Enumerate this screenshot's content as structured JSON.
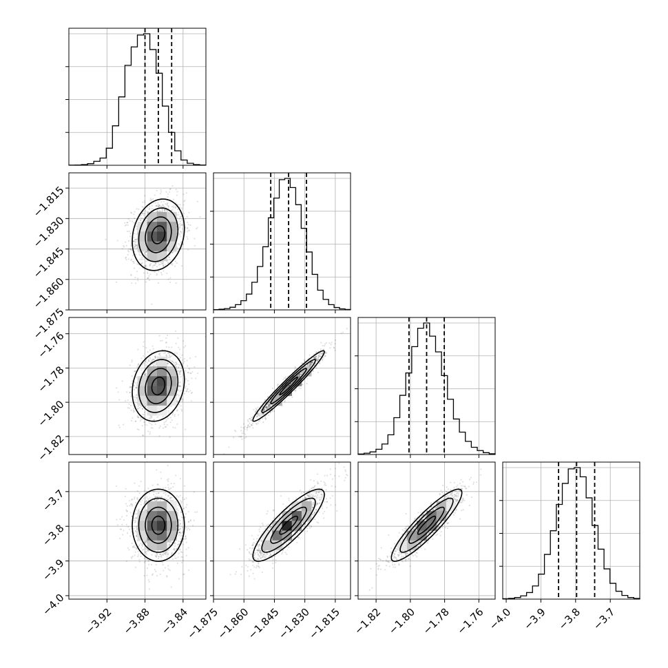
{
  "chart_data": {
    "type": "corner",
    "parameters": [
      {
        "key": "p0",
        "range": [
          -3.96,
          -3.816
        ],
        "center": -3.866,
        "sigma": 0.0137,
        "quantiles": [
          -3.88,
          -3.866,
          -3.852
        ],
        "ticks": [
          -3.92,
          -3.88,
          -3.84
        ],
        "tick_labels": [
          "−3.92",
          "−3.88",
          "−3.84"
        ],
        "hist": [
          1,
          2,
          5,
          12,
          30,
          55,
          130,
          300,
          520,
          760,
          900,
          990,
          1000,
          880,
          700,
          450,
          250,
          110,
          40,
          15,
          5,
          2
        ]
      },
      {
        "key": "p1",
        "range": [
          -1.875,
          -1.8075
        ],
        "center": -1.838,
        "sigma": 0.0088,
        "quantiles": [
          -1.8468,
          -1.838,
          -1.8292
        ],
        "ticks": [
          -1.875,
          -1.86,
          -1.845,
          -1.83,
          -1.815
        ],
        "tick_labels": [
          "−1.875",
          "−1.860",
          "−1.845",
          "−1.830",
          "−1.815"
        ],
        "y_tick_labels": [
          "−1.815",
          "−1.830",
          "−1.845",
          "−1.860",
          "−1.875"
        ],
        "hist": [
          2,
          5,
          10,
          20,
          40,
          70,
          120,
          210,
          330,
          480,
          700,
          850,
          990,
          1000,
          930,
          800,
          620,
          440,
          270,
          150,
          80,
          40,
          18,
          8,
          3
        ]
      },
      {
        "key": "p2",
        "range": [
          -1.8305,
          -1.7505
        ],
        "center": -1.7905,
        "sigma": 0.0103,
        "quantiles": [
          -1.8008,
          -1.7905,
          -1.7802
        ],
        "ticks": [
          -1.82,
          -1.8,
          -1.78,
          -1.76
        ],
        "tick_labels": [
          "−1.82",
          "−1.80",
          "−1.78",
          "−1.76"
        ],
        "hist": [
          4,
          10,
          20,
          40,
          80,
          150,
          280,
          450,
          620,
          820,
          960,
          1000,
          900,
          780,
          600,
          420,
          270,
          170,
          100,
          55,
          30,
          14,
          6
        ]
      },
      {
        "key": "p3",
        "range": [
          -4.01,
          -3.615
        ],
        "center": -3.797,
        "sigma": 0.052,
        "quantiles": [
          -3.849,
          -3.797,
          -3.745
        ],
        "ticks": [
          -4.0,
          -3.9,
          -3.8,
          -3.7
        ],
        "tick_labels": [
          "−4.0",
          "−3.9",
          "−3.8",
          "−3.7"
        ],
        "hist": [
          3,
          6,
          12,
          25,
          50,
          100,
          190,
          340,
          520,
          720,
          880,
          990,
          1000,
          930,
          770,
          560,
          380,
          230,
          120,
          60,
          28,
          12,
          5
        ]
      }
    ],
    "correlations": [
      {
        "row": 1,
        "col": 0,
        "rho": 0.18
      },
      {
        "row": 2,
        "col": 0,
        "rho": 0.18
      },
      {
        "row": 2,
        "col": 1,
        "rho": 0.97
      },
      {
        "row": 3,
        "col": 0,
        "rho": 0.0
      },
      {
        "row": 3,
        "col": 1,
        "rho": 0.85
      },
      {
        "row": 3,
        "col": 2,
        "rho": 0.9
      }
    ],
    "contour_levels_sigma": [
      0.5,
      1.0,
      1.5,
      2.0
    ],
    "grid": true,
    "x_labels": [
      "",
      "",
      "",
      ""
    ],
    "y_labels": [
      "",
      "",
      "",
      ""
    ]
  }
}
